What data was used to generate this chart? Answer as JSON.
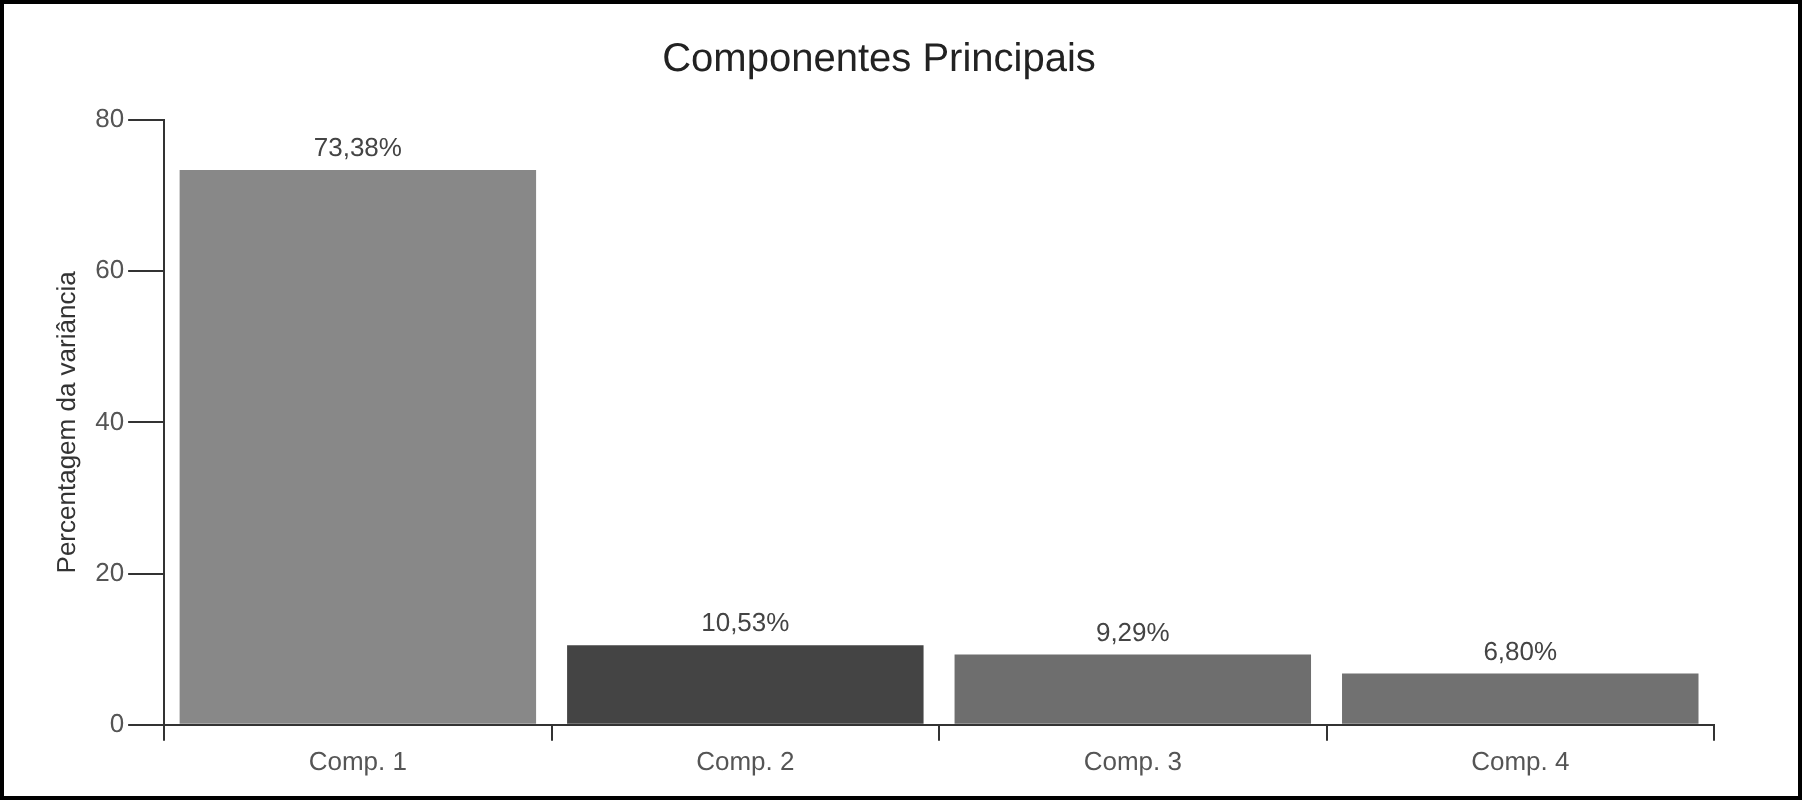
{
  "chart_data": {
    "type": "bar",
    "title": "Componentes Principais",
    "ylabel": "Percentagem da variância",
    "categories": [
      "Comp. 1",
      "Comp. 2",
      "Comp. 3",
      "Comp. 4"
    ],
    "values": [
      73.38,
      10.53,
      9.29,
      6.8
    ],
    "colors": [
      "#888888",
      "#444444",
      "#6e6e6e",
      "#717171"
    ],
    "value_labels": [
      "73,38%",
      "10,53%",
      "9,29%",
      "6,80%"
    ],
    "ylim": [
      0,
      80
    ],
    "yticks": [
      0,
      20,
      40,
      60,
      80
    ],
    "grid": false,
    "legend": false
  }
}
